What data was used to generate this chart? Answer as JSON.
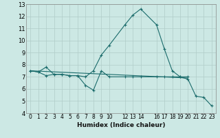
{
  "xlabel": "Humidex (Indice chaleur)",
  "bg_color": "#cce8e4",
  "grid_color": "#b0ccc8",
  "line_color": "#1a6b6b",
  "ylim": [
    4,
    13
  ],
  "xlim": [
    -0.5,
    23.5
  ],
  "yticks": [
    4,
    5,
    6,
    7,
    8,
    9,
    10,
    11,
    12,
    13
  ],
  "xticks": [
    0,
    1,
    2,
    3,
    4,
    5,
    6,
    7,
    8,
    9,
    10,
    12,
    13,
    14,
    16,
    17,
    18,
    19,
    20,
    21,
    22,
    23
  ],
  "xtick_labels": [
    "0",
    "1",
    "2",
    "3",
    "4",
    "5",
    "6",
    "7",
    "8",
    "9",
    "10",
    "12",
    "13",
    "14",
    "16",
    "17",
    "18",
    "19",
    "20",
    "21",
    "22",
    "23"
  ],
  "line1_x": [
    0,
    1,
    2,
    3,
    4,
    5,
    6,
    7,
    8,
    9,
    10,
    12,
    13,
    14,
    16,
    17,
    18,
    19,
    20,
    21,
    22,
    23
  ],
  "line1_y": [
    7.5,
    7.4,
    7.8,
    7.2,
    7.2,
    7.1,
    7.1,
    7.0,
    7.5,
    8.8,
    9.6,
    11.3,
    12.1,
    12.6,
    11.3,
    9.3,
    7.5,
    7.0,
    6.8,
    5.4,
    5.3,
    4.6
  ],
  "line2_x": [
    0,
    1,
    2,
    3,
    4,
    5,
    6,
    7,
    8,
    9,
    10,
    12,
    13,
    14,
    16,
    17,
    18,
    19,
    20
  ],
  "line2_y": [
    7.5,
    7.4,
    7.1,
    7.2,
    7.2,
    7.1,
    7.1,
    6.3,
    5.9,
    7.5,
    7.0,
    7.0,
    7.0,
    7.0,
    7.0,
    7.0,
    7.0,
    7.0,
    7.0
  ],
  "line3_x": [
    0,
    20
  ],
  "line3_y": [
    7.5,
    6.9
  ]
}
